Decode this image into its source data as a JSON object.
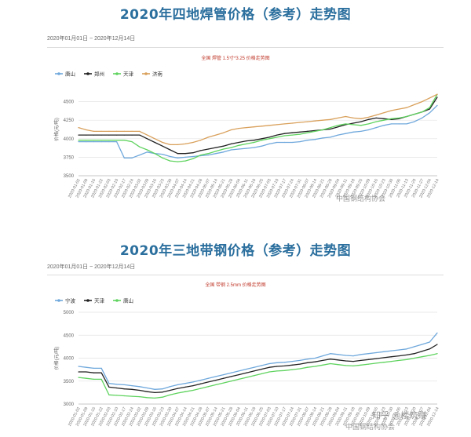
{
  "watermarks": {
    "c1": "中国钢结构协会",
    "c2": "中国钢结构协会",
    "c2b": "知乎 @楼筑赚"
  },
  "chart_data": [
    {
      "type": "line",
      "title": "2020年四地焊管价格（参考）走势图",
      "date_range": "2020年01月01日 ~ 2020年12月14日",
      "subtitle": "全国 焊管 1.5寸*3.25 价格走势图",
      "ylabel": "价格(元/吨)",
      "ylim": [
        3500,
        4750
      ],
      "yticks": [
        3500,
        3750,
        4000,
        4250,
        4500
      ],
      "grid": true,
      "legend_position": "top-left",
      "x": [
        "2020-01-02",
        "2020-01-09",
        "2020-01-16",
        "2020-01-22",
        "2020-02-03",
        "2020-02-10",
        "2020-02-17",
        "2020-02-24",
        "2020-03-02",
        "2020-03-09",
        "2020-03-16",
        "2020-03-23",
        "2020-03-30",
        "2020-04-07",
        "2020-04-14",
        "2020-04-21",
        "2020-04-28",
        "2020-05-07",
        "2020-05-14",
        "2020-05-21",
        "2020-05-28",
        "2020-06-04",
        "2020-06-11",
        "2020-06-18",
        "2020-06-25",
        "2020-07-03",
        "2020-07-10",
        "2020-07-17",
        "2020-07-24",
        "2020-07-31",
        "2020-08-07",
        "2020-08-14",
        "2020-08-21",
        "2020-08-28",
        "2020-09-04",
        "2020-09-11",
        "2020-09-18",
        "2020-09-25",
        "2020-10-09",
        "2020-10-16",
        "2020-10-23",
        "2020-10-30",
        "2020-11-06",
        "2020-11-13",
        "2020-11-20",
        "2020-11-27",
        "2020-12-04",
        "2020-12-14"
      ],
      "series": [
        {
          "name": "唐山",
          "color": "#6fa8dc",
          "values": [
            3960,
            3960,
            3960,
            3960,
            3960,
            3960,
            3740,
            3740,
            3780,
            3820,
            3800,
            3790,
            3760,
            3740,
            3750,
            3760,
            3770,
            3780,
            3800,
            3820,
            3850,
            3860,
            3870,
            3880,
            3900,
            3930,
            3950,
            3950,
            3950,
            3960,
            3980,
            3990,
            4010,
            4020,
            4050,
            4070,
            4090,
            4100,
            4120,
            4150,
            4180,
            4200,
            4200,
            4200,
            4230,
            4280,
            4350,
            4450
          ]
        },
        {
          "name": "郑州",
          "color": "#222222",
          "values": [
            4050,
            4050,
            4050,
            4050,
            4050,
            4050,
            4050,
            4050,
            4050,
            4000,
            3950,
            3900,
            3850,
            3800,
            3800,
            3810,
            3840,
            3860,
            3880,
            3900,
            3930,
            3950,
            3970,
            3980,
            4000,
            4020,
            4050,
            4070,
            4080,
            4090,
            4100,
            4110,
            4120,
            4130,
            4160,
            4190,
            4210,
            4230,
            4260,
            4280,
            4270,
            4260,
            4270,
            4300,
            4330,
            4360,
            4400,
            4560
          ]
        },
        {
          "name": "天津",
          "color": "#5fd35f",
          "values": [
            3980,
            3980,
            3980,
            3980,
            3980,
            3980,
            3980,
            3960,
            3890,
            3850,
            3800,
            3740,
            3700,
            3690,
            3700,
            3730,
            3780,
            3800,
            3830,
            3860,
            3880,
            3910,
            3930,
            3950,
            3980,
            4000,
            4020,
            4040,
            4050,
            4060,
            4080,
            4100,
            4120,
            4150,
            4180,
            4200,
            4190,
            4180,
            4200,
            4230,
            4250,
            4270,
            4280,
            4300,
            4330,
            4360,
            4420,
            4600
          ]
        },
        {
          "name": "济南",
          "color": "#d9a05b",
          "values": [
            4150,
            4120,
            4100,
            4100,
            4100,
            4100,
            4100,
            4100,
            4100,
            4050,
            4000,
            3950,
            3920,
            3920,
            3930,
            3950,
            3980,
            4020,
            4050,
            4080,
            4120,
            4140,
            4150,
            4160,
            4170,
            4180,
            4190,
            4200,
            4210,
            4220,
            4230,
            4240,
            4250,
            4260,
            4280,
            4300,
            4280,
            4270,
            4290,
            4320,
            4350,
            4380,
            4400,
            4420,
            4460,
            4500,
            4550,
            4600
          ]
        }
      ]
    },
    {
      "type": "line",
      "title": "2020年三地带钢价格（参考）走势图",
      "date_range": "2020年01月01日 ~ 2020年12月14日",
      "subtitle": "全国 带钢 2.5mm 价格走势图",
      "ylabel": "价格(元/吨)",
      "ylim": [
        3000,
        5000
      ],
      "yticks": [
        3000,
        3500,
        4000,
        4500,
        5000
      ],
      "grid": true,
      "legend_position": "top-left",
      "x": [
        "2020-01-02",
        "2020-01-09",
        "2020-01-16",
        "2020-01-22",
        "2020-02-03",
        "2020-02-10",
        "2020-02-17",
        "2020-02-24",
        "2020-03-02",
        "2020-03-09",
        "2020-03-16",
        "2020-03-23",
        "2020-03-30",
        "2020-04-07",
        "2020-04-14",
        "2020-04-21",
        "2020-04-28",
        "2020-05-07",
        "2020-05-14",
        "2020-05-21",
        "2020-05-28",
        "2020-06-04",
        "2020-06-11",
        "2020-06-18",
        "2020-06-25",
        "2020-07-03",
        "2020-07-10",
        "2020-07-17",
        "2020-07-24",
        "2020-07-31",
        "2020-08-07",
        "2020-08-14",
        "2020-08-21",
        "2020-08-28",
        "2020-09-04",
        "2020-09-11",
        "2020-09-18",
        "2020-09-25",
        "2020-10-09",
        "2020-10-16",
        "2020-10-23",
        "2020-10-30",
        "2020-11-06",
        "2020-11-13",
        "2020-11-20",
        "2020-11-27",
        "2020-12-04",
        "2020-12-14"
      ],
      "series": [
        {
          "name": "宁波",
          "color": "#6fa8dc",
          "values": [
            3820,
            3800,
            3780,
            3780,
            3450,
            3430,
            3420,
            3400,
            3380,
            3350,
            3320,
            3330,
            3380,
            3420,
            3450,
            3480,
            3520,
            3560,
            3600,
            3640,
            3680,
            3720,
            3760,
            3800,
            3840,
            3880,
            3900,
            3910,
            3930,
            3950,
            3980,
            4000,
            4050,
            4100,
            4080,
            4060,
            4050,
            4080,
            4100,
            4120,
            4140,
            4160,
            4180,
            4200,
            4250,
            4300,
            4350,
            4550
          ]
        },
        {
          "name": "天津",
          "color": "#222222",
          "values": [
            3700,
            3700,
            3680,
            3680,
            3370,
            3350,
            3330,
            3320,
            3300,
            3270,
            3250,
            3260,
            3300,
            3340,
            3370,
            3400,
            3440,
            3480,
            3520,
            3560,
            3600,
            3640,
            3680,
            3720,
            3760,
            3800,
            3820,
            3830,
            3850,
            3870,
            3900,
            3920,
            3950,
            3980,
            3960,
            3940,
            3930,
            3950,
            3970,
            3990,
            4010,
            4030,
            4050,
            4070,
            4100,
            4150,
            4200,
            4300
          ]
        },
        {
          "name": "唐山",
          "color": "#5fd35f",
          "values": [
            3580,
            3560,
            3540,
            3540,
            3200,
            3190,
            3180,
            3170,
            3160,
            3140,
            3130,
            3150,
            3200,
            3240,
            3270,
            3300,
            3340,
            3380,
            3420,
            3460,
            3500,
            3540,
            3580,
            3620,
            3660,
            3700,
            3720,
            3730,
            3750,
            3770,
            3800,
            3820,
            3850,
            3880,
            3860,
            3840,
            3830,
            3850,
            3870,
            3890,
            3910,
            3930,
            3950,
            3970,
            4000,
            4030,
            4060,
            4100
          ]
        }
      ]
    }
  ]
}
